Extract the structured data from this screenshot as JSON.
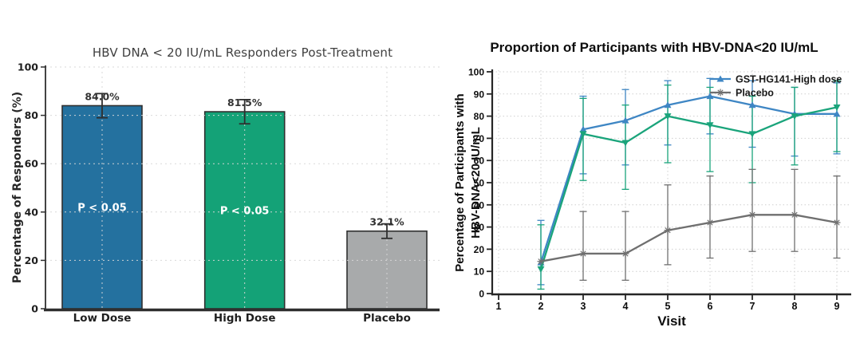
{
  "chart_data": [
    {
      "type": "bar",
      "title": "HBV DNA < 20 IU/mL Responders Post-Treatment",
      "ylabel": "Percentage of Responders (%)",
      "xlabel": "",
      "categories": [
        "Low Dose",
        "High Dose",
        "Placebo"
      ],
      "values": [
        84.0,
        81.5,
        32.1
      ],
      "value_labels": [
        "84.0%",
        "81.5%",
        "32.1%"
      ],
      "error_up": [
        5,
        5,
        3
      ],
      "error_down": [
        5,
        5,
        3
      ],
      "annotations": [
        "P < 0.05",
        "P < 0.05",
        null
      ],
      "bar_colors": [
        "#24719f",
        "#14a277",
        "#a8aaab"
      ],
      "edge_color": "#2f2f2f",
      "error_color": "#2f2f2f",
      "grid_color": "#d7d7d7",
      "ylim": [
        0,
        100
      ],
      "yticks": [
        0,
        20,
        40,
        60,
        80,
        100
      ],
      "grid": true,
      "legend_position": "none"
    },
    {
      "type": "line",
      "title": "Proportion of Participants with HBV-DNA<20 IU/mL",
      "ylabel_lines": [
        "Percentage of Participants with",
        "HBV-DNA<20 IU/mL"
      ],
      "xlabel": "Visit",
      "x": [
        2,
        3,
        4,
        5,
        6,
        7,
        8,
        9
      ],
      "xticks": [
        1,
        2,
        3,
        4,
        5,
        6,
        7,
        8,
        9
      ],
      "ylim": [
        0,
        100
      ],
      "yticks": [
        0,
        10,
        20,
        30,
        40,
        50,
        60,
        70,
        80,
        90,
        100
      ],
      "grid": true,
      "legend_position": "upper-right-inside",
      "legend": [
        "GST-HG141-High dose",
        "Placebo"
      ],
      "series": [
        {
          "name": "GST-HG141-High dose",
          "color": "#3e86c4",
          "marker": "triangle-up",
          "in_legend": true,
          "values": [
            14,
            74,
            78,
            85,
            89,
            85,
            81,
            81
          ],
          "upper": [
            33,
            89,
            92,
            96,
            97,
            96,
            93,
            95
          ],
          "lower": [
            4,
            54,
            58,
            67,
            72,
            66,
            62,
            63
          ]
        },
        {
          "name": "unlabeled-green-series",
          "color": "#1aa47b",
          "marker": "triangle-down",
          "in_legend": false,
          "values": [
            11,
            72,
            68,
            80,
            76,
            72,
            80,
            84
          ],
          "upper": [
            31,
            88,
            85,
            94,
            93,
            89,
            93,
            96
          ],
          "lower": [
            2,
            51,
            47,
            59,
            55,
            50,
            58,
            64
          ]
        },
        {
          "name": "Placebo",
          "color": "#6f6f6f",
          "marker": "asterisk",
          "in_legend": true,
          "values": [
            14.5,
            18,
            18,
            28.5,
            32,
            35.5,
            35.5,
            32
          ],
          "upper": [
            null,
            37,
            37,
            49,
            53,
            56,
            56,
            53
          ],
          "lower": [
            null,
            6,
            6,
            13,
            16,
            19,
            19,
            16
          ]
        }
      ]
    }
  ]
}
